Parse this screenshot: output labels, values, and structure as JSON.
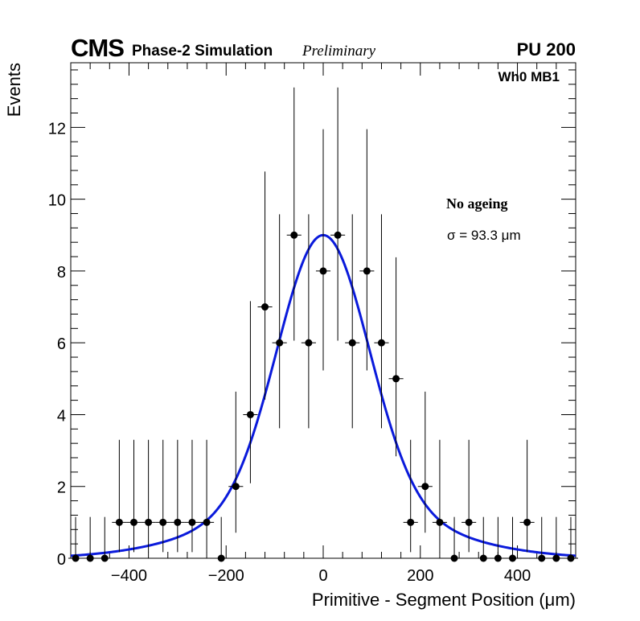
{
  "header": {
    "experiment": "CMS",
    "sim_label": "Phase-2 Simulation",
    "status": "Preliminary",
    "pileup": "PU 200",
    "chamber": "Wh0 MB1"
  },
  "annotations": {
    "condition": "No ageing",
    "sigma_text": "σ = 93.3 μm"
  },
  "chart_data": {
    "type": "scatter",
    "title": "",
    "xlabel": "Primitive - Segment Position (μm)",
    "ylabel": "Events",
    "xlim": [
      -520,
      520
    ],
    "ylim": [
      0,
      13.8
    ],
    "xticks": [
      -400,
      -200,
      0,
      200,
      400
    ],
    "xtick_labels": [
      "−400",
      "−200",
      "0",
      "200",
      "400"
    ],
    "yticks": [
      0,
      2,
      4,
      6,
      8,
      10,
      12
    ],
    "ytick_labels": [
      "0",
      "2",
      "4",
      "6",
      "8",
      "10",
      "12"
    ],
    "bin_half_width": 15,
    "grid": false,
    "series": [
      {
        "name": "Data",
        "style": "points with error bars",
        "x": [
          -510,
          -480,
          -450,
          -420,
          -390,
          -360,
          -330,
          -300,
          -270,
          -240,
          -210,
          -180,
          -150,
          -120,
          -90,
          -60,
          -30,
          0,
          30,
          60,
          90,
          120,
          150,
          180,
          210,
          240,
          270,
          300,
          330,
          360,
          390,
          420,
          450,
          480,
          510
        ],
        "y": [
          0,
          0,
          0,
          1,
          1,
          1,
          1,
          1,
          1,
          1,
          0,
          2,
          4,
          7,
          6,
          9,
          6,
          8,
          9,
          6,
          8,
          6,
          5,
          1,
          2,
          1,
          0,
          1,
          0,
          0,
          0,
          1,
          0,
          0,
          0
        ],
        "y_err_low": [
          0,
          0,
          0,
          0.83,
          0.83,
          0.83,
          0.83,
          0.83,
          0.83,
          0.83,
          0,
          1.29,
          1.91,
          2.58,
          2.38,
          2.94,
          2.38,
          2.77,
          2.94,
          2.38,
          2.77,
          2.38,
          2.16,
          0.83,
          1.29,
          0.83,
          0,
          0.83,
          0,
          0,
          0,
          0.83,
          0,
          0,
          0
        ],
        "y_err_high": [
          1.15,
          1.15,
          1.15,
          2.3,
          2.3,
          2.3,
          2.3,
          2.3,
          2.3,
          2.3,
          1.15,
          2.64,
          3.16,
          3.77,
          3.58,
          4.11,
          3.58,
          3.95,
          4.11,
          3.58,
          3.95,
          3.58,
          3.38,
          2.3,
          2.64,
          2.3,
          1.15,
          2.3,
          1.15,
          1.15,
          1.15,
          2.3,
          1.15,
          1.15,
          1.15
        ],
        "color": "#000000"
      },
      {
        "name": "Gaussian fit",
        "style": "line",
        "amplitude": 7.5,
        "mean": 0,
        "sigma": 93.3,
        "tail_amplitude": 1.5,
        "tail_sigma": 210,
        "color": "#0a1adb"
      }
    ]
  }
}
